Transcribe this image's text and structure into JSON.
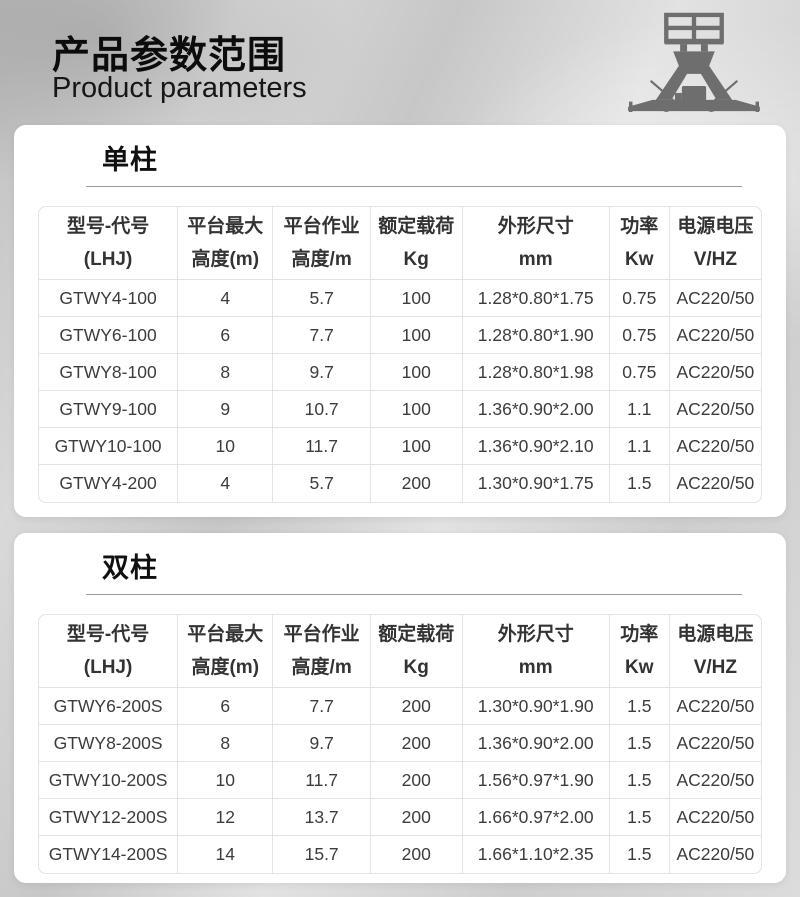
{
  "page": {
    "title": "产品参数范围",
    "subtitle": "Product parameters"
  },
  "colors": {
    "background_silver": "#cfcfcf",
    "card_background": "#ffffff",
    "table_border": "#e3e3e3",
    "divider_line": "#9c9c9c",
    "icon_gray": "#6e6e6e",
    "text_dark": "#0c0c0c",
    "cell_text": "#3c3c3c"
  },
  "icons": {
    "lift": "aerial-work-platform-icon"
  },
  "sections": [
    {
      "title": "单柱",
      "columns": [
        {
          "line1": "型号-代号",
          "line2": "(LHJ)"
        },
        {
          "line1": "平台最大",
          "line2": "高度(m)"
        },
        {
          "line1": "平台作业",
          "line2": "高度/m"
        },
        {
          "line1": "额定载荷",
          "line2": "Kg"
        },
        {
          "line1": "外形尺寸",
          "line2": "mm"
        },
        {
          "line1": "功率",
          "line2": "Kw"
        },
        {
          "line1": "电源电压",
          "line2": "V/HZ"
        }
      ],
      "rows": [
        [
          "GTWY4-100",
          "4",
          "5.7",
          "100",
          "1.28*0.80*1.75",
          "0.75",
          "AC220/50"
        ],
        [
          "GTWY6-100",
          "6",
          "7.7",
          "100",
          "1.28*0.80*1.90",
          "0.75",
          "AC220/50"
        ],
        [
          "GTWY8-100",
          "8",
          "9.7",
          "100",
          "1.28*0.80*1.98",
          "0.75",
          "AC220/50"
        ],
        [
          "GTWY9-100",
          "9",
          "10.7",
          "100",
          "1.36*0.90*2.00",
          "1.1",
          "AC220/50"
        ],
        [
          "GTWY10-100",
          "10",
          "11.7",
          "100",
          "1.36*0.90*2.10",
          "1.1",
          "AC220/50"
        ],
        [
          "GTWY4-200",
          "4",
          "5.7",
          "200",
          "1.30*0.90*1.75",
          "1.5",
          "AC220/50"
        ]
      ]
    },
    {
      "title": "双柱",
      "columns": [
        {
          "line1": "型号-代号",
          "line2": "(LHJ)"
        },
        {
          "line1": "平台最大",
          "line2": "高度(m)"
        },
        {
          "line1": "平台作业",
          "line2": "高度/m"
        },
        {
          "line1": "额定载荷",
          "line2": "Kg"
        },
        {
          "line1": "外形尺寸",
          "line2": "mm"
        },
        {
          "line1": "功率",
          "line2": "Kw"
        },
        {
          "line1": "电源电压",
          "line2": "V/HZ"
        }
      ],
      "rows": [
        [
          "GTWY6-200S",
          "6",
          "7.7",
          "200",
          "1.30*0.90*1.90",
          "1.5",
          "AC220/50"
        ],
        [
          "GTWY8-200S",
          "8",
          "9.7",
          "200",
          "1.36*0.90*2.00",
          "1.5",
          "AC220/50"
        ],
        [
          "GTWY10-200S",
          "10",
          "11.7",
          "200",
          "1.56*0.97*1.90",
          "1.5",
          "AC220/50"
        ],
        [
          "GTWY12-200S",
          "12",
          "13.7",
          "200",
          "1.66*0.97*2.00",
          "1.5",
          "AC220/50"
        ],
        [
          "GTWY14-200S",
          "14",
          "15.7",
          "200",
          "1.66*1.10*2.35",
          "1.5",
          "AC220/50"
        ]
      ]
    }
  ]
}
